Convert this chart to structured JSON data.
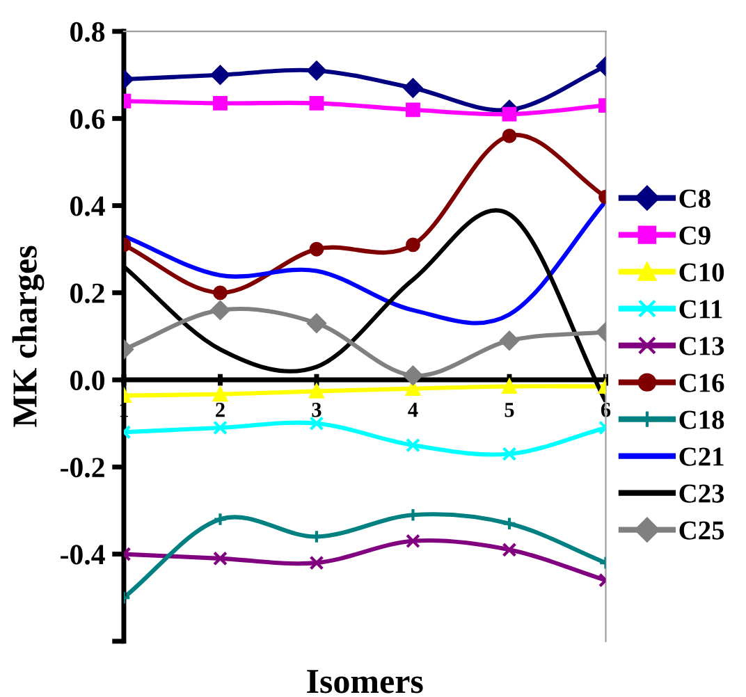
{
  "chart_data": {
    "type": "line",
    "xlabel": "Isomers",
    "ylabel": "MK charges",
    "x": [
      1,
      2,
      3,
      4,
      5,
      6
    ],
    "series": [
      {
        "name": "C8",
        "color": "#000080",
        "marker": "diamond",
        "values": [
          0.69,
          0.7,
          0.71,
          0.67,
          0.62,
          0.72
        ]
      },
      {
        "name": "C9",
        "color": "#ff00ff",
        "marker": "square",
        "values": [
          0.64,
          0.635,
          0.635,
          0.62,
          0.61,
          0.63
        ]
      },
      {
        "name": "C10",
        "color": "#ffff00",
        "marker": "triangle",
        "values": [
          -0.036,
          -0.033,
          -0.026,
          -0.02,
          -0.015,
          -0.015
        ]
      },
      {
        "name": "C11",
        "color": "#00ffff",
        "marker": "cross",
        "values": [
          -0.12,
          -0.11,
          -0.1,
          -0.15,
          -0.17,
          -0.11
        ]
      },
      {
        "name": "C13",
        "color": "#800080",
        "marker": "cross",
        "values": [
          -0.4,
          -0.41,
          -0.42,
          -0.37,
          -0.39,
          -0.46
        ]
      },
      {
        "name": "C16",
        "color": "#800000",
        "marker": "circle",
        "values": [
          0.31,
          0.2,
          0.3,
          0.31,
          0.56,
          0.42
        ]
      },
      {
        "name": "C18",
        "color": "#008080",
        "marker": "plus",
        "values": [
          -0.5,
          -0.32,
          -0.36,
          -0.31,
          -0.33,
          -0.42
        ]
      },
      {
        "name": "C21",
        "color": "#0000ff",
        "marker": "none",
        "values": [
          0.33,
          0.24,
          0.25,
          0.16,
          0.15,
          0.41
        ]
      },
      {
        "name": "C23",
        "color": "#000000",
        "marker": "none",
        "values": [
          0.26,
          0.07,
          0.03,
          0.23,
          0.38,
          -0.05
        ]
      },
      {
        "name": "C25",
        "color": "#808080",
        "marker": "diamond",
        "values": [
          0.07,
          0.16,
          0.13,
          0.01,
          0.09,
          0.11
        ]
      }
    ],
    "xlim": [
      1,
      6
    ],
    "ylim": [
      -0.6,
      0.8
    ],
    "xticks": [
      1,
      2,
      3,
      4,
      5,
      6
    ],
    "yticks": [
      {
        "value": -0.6,
        "label": null
      },
      {
        "value": -0.4,
        "label": "-0.4"
      },
      {
        "value": -0.2,
        "label": "-0.2"
      },
      {
        "value": 0,
        "label": "0.0"
      },
      {
        "value": 0.2,
        "label": "0.2"
      },
      {
        "value": 0.4,
        "label": "0.4"
      },
      {
        "value": 0.6,
        "label": "0.6"
      },
      {
        "value": 0.8,
        "label": "0.8"
      }
    ],
    "legend": "right",
    "grid": false,
    "line_style": "solid"
  }
}
